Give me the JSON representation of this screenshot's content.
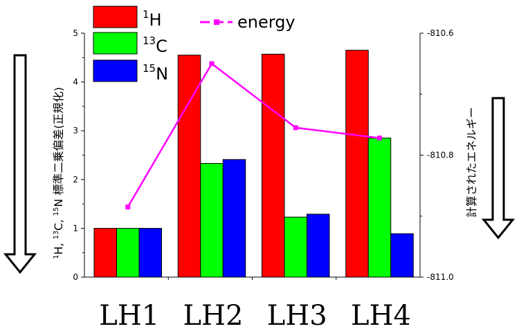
{
  "chart_data": {
    "type": "bar",
    "categories": [
      "LH1",
      "LH2",
      "LH3",
      "LH4"
    ],
    "series": [
      {
        "name": "H",
        "sup": "1",
        "color": "#ff0000",
        "values": [
          1.0,
          4.55,
          4.57,
          4.65
        ]
      },
      {
        "name": "C",
        "sup": "13",
        "color": "#00ff00",
        "values": [
          1.0,
          2.33,
          1.23,
          2.85
        ]
      },
      {
        "name": "N",
        "sup": "15",
        "color": "#0000ff",
        "values": [
          1.0,
          2.41,
          1.29,
          0.89
        ]
      }
    ],
    "line_series": {
      "name": "energy",
      "color": "#ff00ff",
      "axis": "right",
      "values": [
        -810.885,
        -810.65,
        -810.755,
        -810.772
      ]
    },
    "ylim": [
      0,
      5
    ],
    "y_ticks": [
      "0",
      "1",
      "2",
      "3",
      "4",
      "5"
    ],
    "y2lim": [
      -811.0,
      -810.6
    ],
    "y2_ticks": [
      "-811.0",
      "-810.8",
      "-810.6"
    ],
    "ylabel_parts": {
      "a_sup": "1",
      "a": "H, ",
      "b_sup": "13",
      "b": "C, ",
      "c_sup": "15",
      "c": "N 標準二乗偏差(正規化)"
    },
    "y2label": "計算されたエネルギー",
    "legend_position": "top-left",
    "grid": false
  }
}
